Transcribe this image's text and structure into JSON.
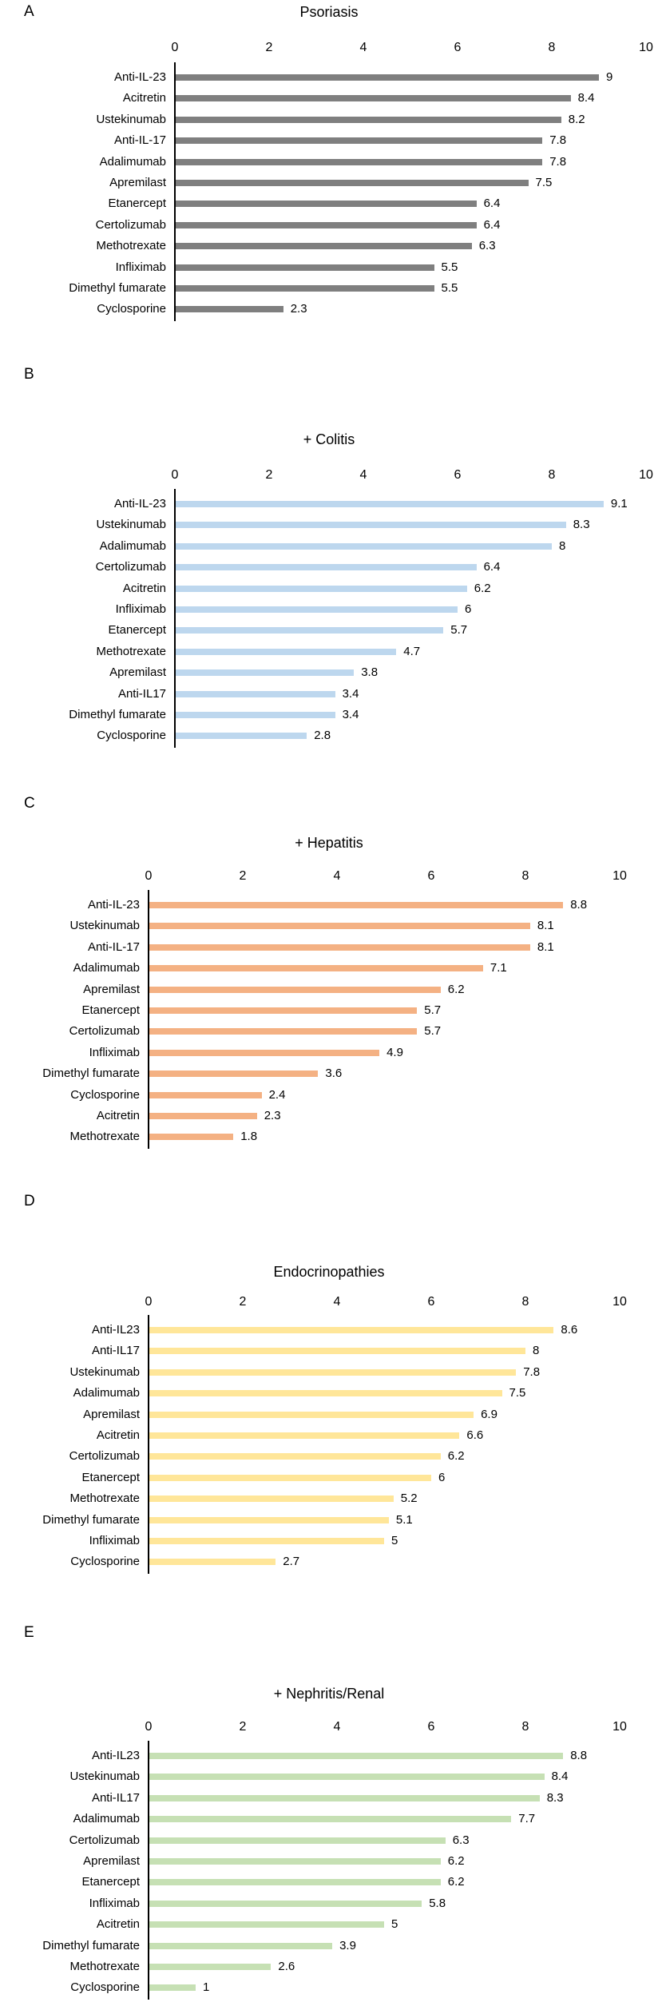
{
  "figure": {
    "background": "#ffffff",
    "text_color": "#000000"
  },
  "chart_data": [
    {
      "type": "bar",
      "orientation": "horizontal",
      "panel_letter": "A",
      "title": "Psoriasis",
      "bar_color": "#7F7F7F",
      "xlim": [
        0,
        10
      ],
      "x_ticks": [
        0,
        2,
        4,
        6,
        8,
        10
      ],
      "grid": false,
      "legend": false,
      "categories": [
        "Anti-IL-23",
        "Acitretin",
        "Ustekinumab",
        "Anti-IL-17",
        "Adalimumab",
        "Apremilast",
        "Etanercept",
        "Certolizumab",
        "Methotrexate",
        "Infliximab",
        "Dimethyl fumarate",
        "Cyclosporine"
      ],
      "values": [
        9,
        8.4,
        8.2,
        7.8,
        7.8,
        7.5,
        6.4,
        6.4,
        6.3,
        5.5,
        5.5,
        2.3
      ]
    },
    {
      "type": "bar",
      "orientation": "horizontal",
      "panel_letter": "B",
      "title": "+ Colitis",
      "bar_color": "#BDD7EE",
      "xlim": [
        0,
        10
      ],
      "x_ticks": [
        0,
        2,
        4,
        6,
        8,
        10
      ],
      "grid": false,
      "legend": false,
      "categories": [
        "Anti-IL-23",
        "Ustekinumab",
        "Adalimumab",
        "Certolizumab",
        "Acitretin",
        "Infliximab",
        "Etanercept",
        "Methotrexate",
        "Apremilast",
        "Anti-IL17",
        "Dimethyl fumarate",
        "Cyclosporine"
      ],
      "values": [
        9.1,
        8.3,
        8,
        6.4,
        6.2,
        6,
        5.7,
        4.7,
        3.8,
        3.4,
        3.4,
        2.8
      ]
    },
    {
      "type": "bar",
      "orientation": "horizontal",
      "panel_letter": "C",
      "title": "+ Hepatitis",
      "bar_color": "#F4B183",
      "xlim": [
        0,
        10
      ],
      "x_ticks": [
        0,
        2,
        4,
        6,
        8,
        10
      ],
      "grid": false,
      "legend": false,
      "categories": [
        "Anti-IL-23",
        "Ustekinumab",
        "Anti-IL-17",
        "Adalimumab",
        "Apremilast",
        "Etanercept",
        "Certolizumab",
        "Infliximab",
        "Dimethyl fumarate",
        "Cyclosporine",
        "Acitretin",
        "Methotrexate"
      ],
      "values": [
        8.8,
        8.1,
        8.1,
        7.1,
        6.2,
        5.7,
        5.7,
        4.9,
        3.6,
        2.4,
        2.3,
        1.8
      ]
    },
    {
      "type": "bar",
      "orientation": "horizontal",
      "panel_letter": "D",
      "title": "Endocrinopathies",
      "bar_color": "#FFE699",
      "xlim": [
        0,
        10
      ],
      "x_ticks": [
        0,
        2,
        4,
        6,
        8,
        10
      ],
      "grid": false,
      "legend": false,
      "categories": [
        "Anti-IL23",
        "Anti-IL17",
        "Ustekinumab",
        "Adalimumab",
        "Apremilast",
        "Acitretin",
        "Certolizumab",
        "Etanercept",
        "Methotrexate",
        "Dimethyl fumarate",
        "Infliximab",
        "Cyclosporine"
      ],
      "values": [
        8.6,
        8,
        7.8,
        7.5,
        6.9,
        6.6,
        6.2,
        6,
        5.2,
        5.1,
        5,
        2.7
      ]
    },
    {
      "type": "bar",
      "orientation": "horizontal",
      "panel_letter": "E",
      "title": "+ Nephritis/Renal",
      "bar_color": "#C6E0B4",
      "xlim": [
        0,
        10
      ],
      "x_ticks": [
        0,
        2,
        4,
        6,
        8,
        10
      ],
      "grid": false,
      "legend": false,
      "categories": [
        "Anti-IL23",
        "Ustekinumab",
        "Anti-IL17",
        "Adalimumab",
        "Certolizumab",
        "Apremilast",
        "Etanercept",
        "Infliximab",
        "Acitretin",
        "Dimethyl fumarate",
        "Methotrexate",
        "Cyclosporine"
      ],
      "values": [
        8.8,
        8.4,
        8.3,
        7.7,
        6.3,
        6.2,
        6.2,
        5.8,
        5,
        3.9,
        2.6,
        1
      ]
    }
  ]
}
